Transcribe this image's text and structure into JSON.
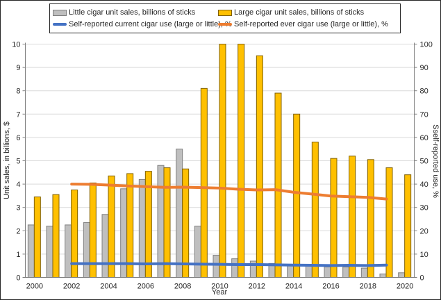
{
  "legend": {
    "items": [
      {
        "label": "Little cigar unit sales, billions of sticks",
        "swatch": "bar",
        "color": "#bfbfbf",
        "border": "#7f7f7f"
      },
      {
        "label": "Large cigar unit sales, billions of sticks",
        "swatch": "bar",
        "color": "#ffc000",
        "border": "#806000"
      },
      {
        "label": "Self-reported current cigar use (large or little), %",
        "swatch": "line",
        "color": "#4472c4"
      },
      {
        "label": "Self-reported ever cigar use (large or little), %",
        "swatch": "line",
        "color": "#ed7d31"
      }
    ]
  },
  "axes": {
    "left_label": "Unit sales, in billions, $",
    "right_label": "Sself-reported use, %",
    "x_label": "Year"
  },
  "chart_data": {
    "type": "combo",
    "subtypes": [
      "bar",
      "line"
    ],
    "title": "",
    "xlabel": "Year",
    "ylabel_left": "Unit sales, in billions, $",
    "ylabel_right": "Sself-reported use, %",
    "grid": true,
    "legend_position": "top",
    "ylim_left": [
      0,
      10
    ],
    "ylim_right": [
      0,
      100
    ],
    "left_ticks": [
      0,
      1,
      2,
      3,
      4,
      5,
      6,
      7,
      8,
      9,
      10
    ],
    "right_ticks": [
      0,
      10,
      20,
      30,
      40,
      50,
      60,
      70,
      80,
      90,
      100
    ],
    "x_tick_step": 2,
    "categories": [
      2000,
      2001,
      2002,
      2003,
      2004,
      2005,
      2006,
      2007,
      2008,
      2009,
      2010,
      2011,
      2012,
      2013,
      2014,
      2015,
      2016,
      2017,
      2018,
      2019,
      2020
    ],
    "series": [
      {
        "id": "bar-little-cigar",
        "name": "Little cigar unit sales, billions of sticks",
        "type": "bar",
        "axis": "left",
        "color": "#bfbfbf",
        "border": "#7f7f7f",
        "values": [
          2.25,
          2.2,
          2.25,
          2.35,
          2.7,
          3.8,
          4.2,
          4.8,
          5.5,
          2.2,
          0.95,
          0.8,
          0.7,
          0.6,
          0.55,
          0.5,
          0.45,
          0.45,
          0.4,
          0.15,
          0.2
        ]
      },
      {
        "id": "bar-large-cigar",
        "name": "Large cigar unit sales, billions of sticks",
        "type": "bar",
        "axis": "left",
        "color": "#ffc000",
        "border": "#806000",
        "values": [
          3.45,
          3.55,
          3.75,
          4.05,
          4.35,
          4.45,
          4.55,
          4.7,
          4.65,
          8.1,
          10,
          10,
          9.5,
          7.9,
          7.0,
          5.8,
          5.1,
          5.2,
          5.05,
          4.7,
          4.4
        ]
      },
      {
        "id": "line-current-cigar-use",
        "name": "Self-reported current cigar use (large or little), %",
        "type": "line",
        "axis": "right",
        "color": "#4472c4",
        "x": [
          2002,
          2003,
          2004,
          2005,
          2006,
          2007,
          2008,
          2009,
          2010,
          2011,
          2012,
          2013,
          2014,
          2015,
          2016,
          2017,
          2018,
          2019
        ],
        "values": [
          5.9,
          5.9,
          5.9,
          5.9,
          5.8,
          5.9,
          5.8,
          5.7,
          5.6,
          5.5,
          5.5,
          5.4,
          5.3,
          5.2,
          5.1,
          5.2,
          5.1,
          5.3
        ]
      },
      {
        "id": "line-ever-cigar-use",
        "name": "Self-reported ever cigar use (large or little), %",
        "type": "line",
        "axis": "right",
        "color": "#ed7d31",
        "x": [
          2002,
          2003,
          2004,
          2005,
          2006,
          2007,
          2008,
          2009,
          2010,
          2011,
          2012,
          2013,
          2014,
          2015,
          2016,
          2017,
          2018,
          2019
        ],
        "values": [
          40,
          39.9,
          39.6,
          39.2,
          38.9,
          38.6,
          38.7,
          38.5,
          38.3,
          37.8,
          37.5,
          37.6,
          36.5,
          35.7,
          34.9,
          34.6,
          34.3,
          33.6
        ]
      }
    ]
  }
}
